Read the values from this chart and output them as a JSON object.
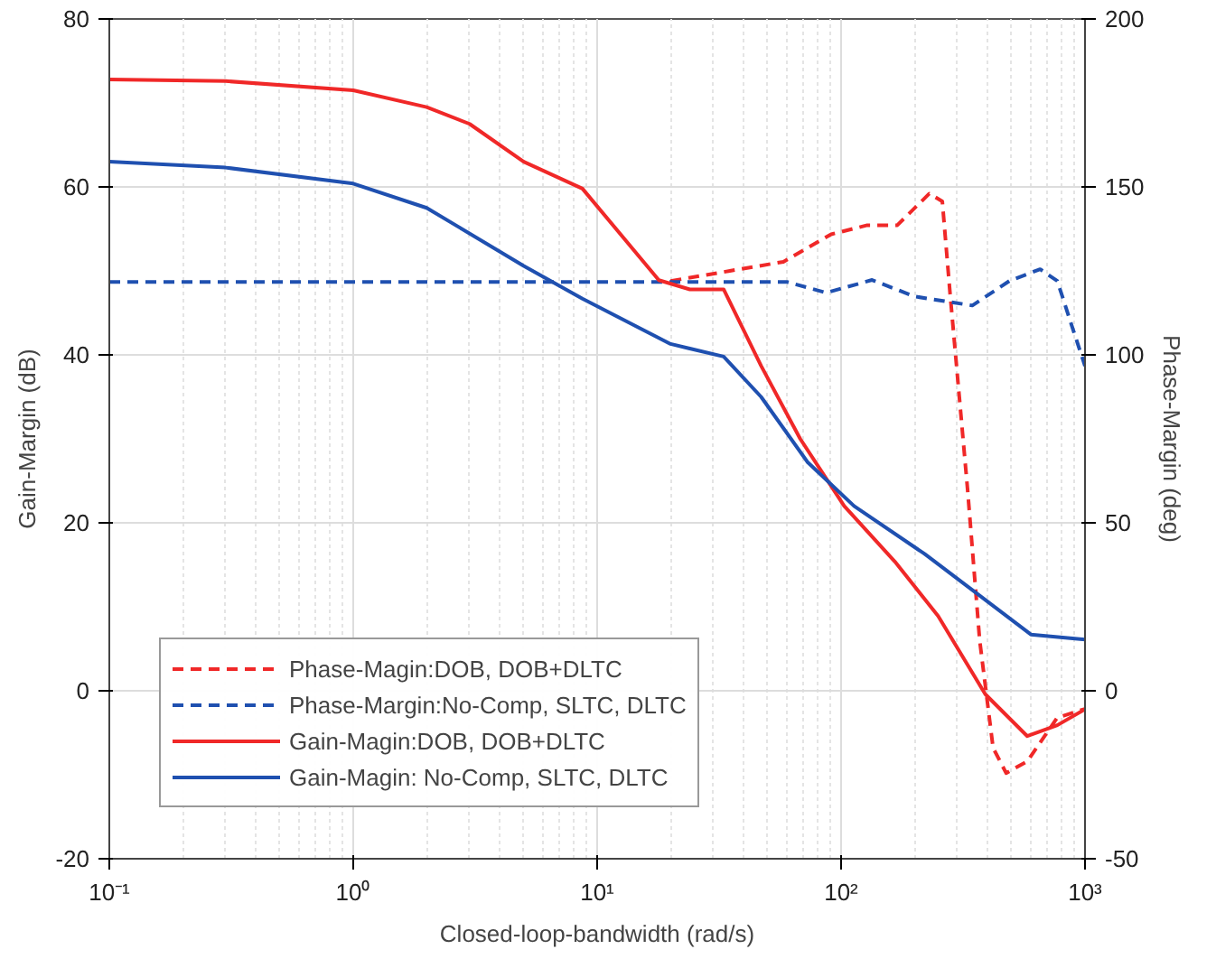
{
  "chart_data": {
    "type": "line",
    "xlabel": "Closed-loop-bandwidth (rad/s)",
    "ylabel": "Gain-Margin (dB)",
    "y2label": "Phase-Margin (deg)",
    "log": "x",
    "grid": true,
    "legend": "bottom left",
    "line_style": "solid",
    "xlim": [
      0.1,
      1000
    ],
    "xticks": [
      {
        "value": 0.1,
        "label": "10⁻¹"
      },
      {
        "value": 1,
        "label": "10⁰"
      },
      {
        "value": 10,
        "label": "10¹"
      },
      {
        "value": 100,
        "label": "10²"
      },
      {
        "value": 1000,
        "label": "10³"
      }
    ],
    "ylim": [
      -20,
      80
    ],
    "yticks": [
      -20,
      0,
      20,
      40,
      60,
      80
    ],
    "y2lim": [
      -50,
      200
    ],
    "y2ticks": [
      -50,
      0,
      50,
      100,
      150,
      200
    ],
    "series": [
      {
        "name": "Phase-Magin:DOB, DOB+DLTC",
        "color": "#f02828",
        "axis": "y2",
        "line_style": "dashed",
        "x": [
          20,
          35,
          58,
          91,
          128,
          170,
          230,
          260,
          280,
          330,
          370,
          420,
          475,
          580,
          770,
          1000
        ],
        "values": [
          122,
          125,
          127.7,
          135.9,
          138.6,
          138.6,
          148,
          145.7,
          118,
          60,
          15,
          -17,
          -24.5,
          -21,
          -8,
          -5.4
        ]
      },
      {
        "name": "Phase-Margin:No-Comp, SLTC, DLTC",
        "color": "#1f50b0",
        "axis": "y2",
        "line_style": "dashed",
        "x": [
          0.1,
          1,
          10,
          60,
          87,
          134,
          200,
          345,
          490,
          655,
          770,
          880,
          1000
        ],
        "values": [
          121.7,
          121.7,
          121.7,
          121.7,
          118.5,
          122.3,
          117.4,
          114.7,
          122,
          125.5,
          122,
          109,
          96.7
        ]
      },
      {
        "name": "Gain-Magin:DOB, DOB+DLTC",
        "color": "#f02828",
        "x": [
          0.1,
          0.3,
          1,
          2,
          3,
          5,
          8.7,
          17.9,
          24,
          33,
          47,
          68,
          103,
          166,
          250,
          390,
          580,
          770,
          1000
        ],
        "values": [
          72.8,
          72.6,
          71.5,
          69.5,
          67.5,
          63,
          59.8,
          48.9,
          47.8,
          47.8,
          38.7,
          30,
          22,
          15.4,
          8.9,
          -0.4,
          -5.4,
          -4.1,
          -2.2
        ]
      },
      {
        "name": "Gain-Magin: No-Comp, SLTC, DLTC",
        "color": "#1f50b0",
        "x": [
          0.1,
          0.3,
          1,
          2,
          5,
          8.7,
          20,
          33,
          47,
          73,
          113,
          220,
          345,
          600,
          1000
        ],
        "values": [
          63,
          62.3,
          60.4,
          57.5,
          50.6,
          46.7,
          41.3,
          39.8,
          35,
          27.2,
          22,
          16.3,
          12,
          6.7,
          6.1
        ]
      }
    ]
  }
}
